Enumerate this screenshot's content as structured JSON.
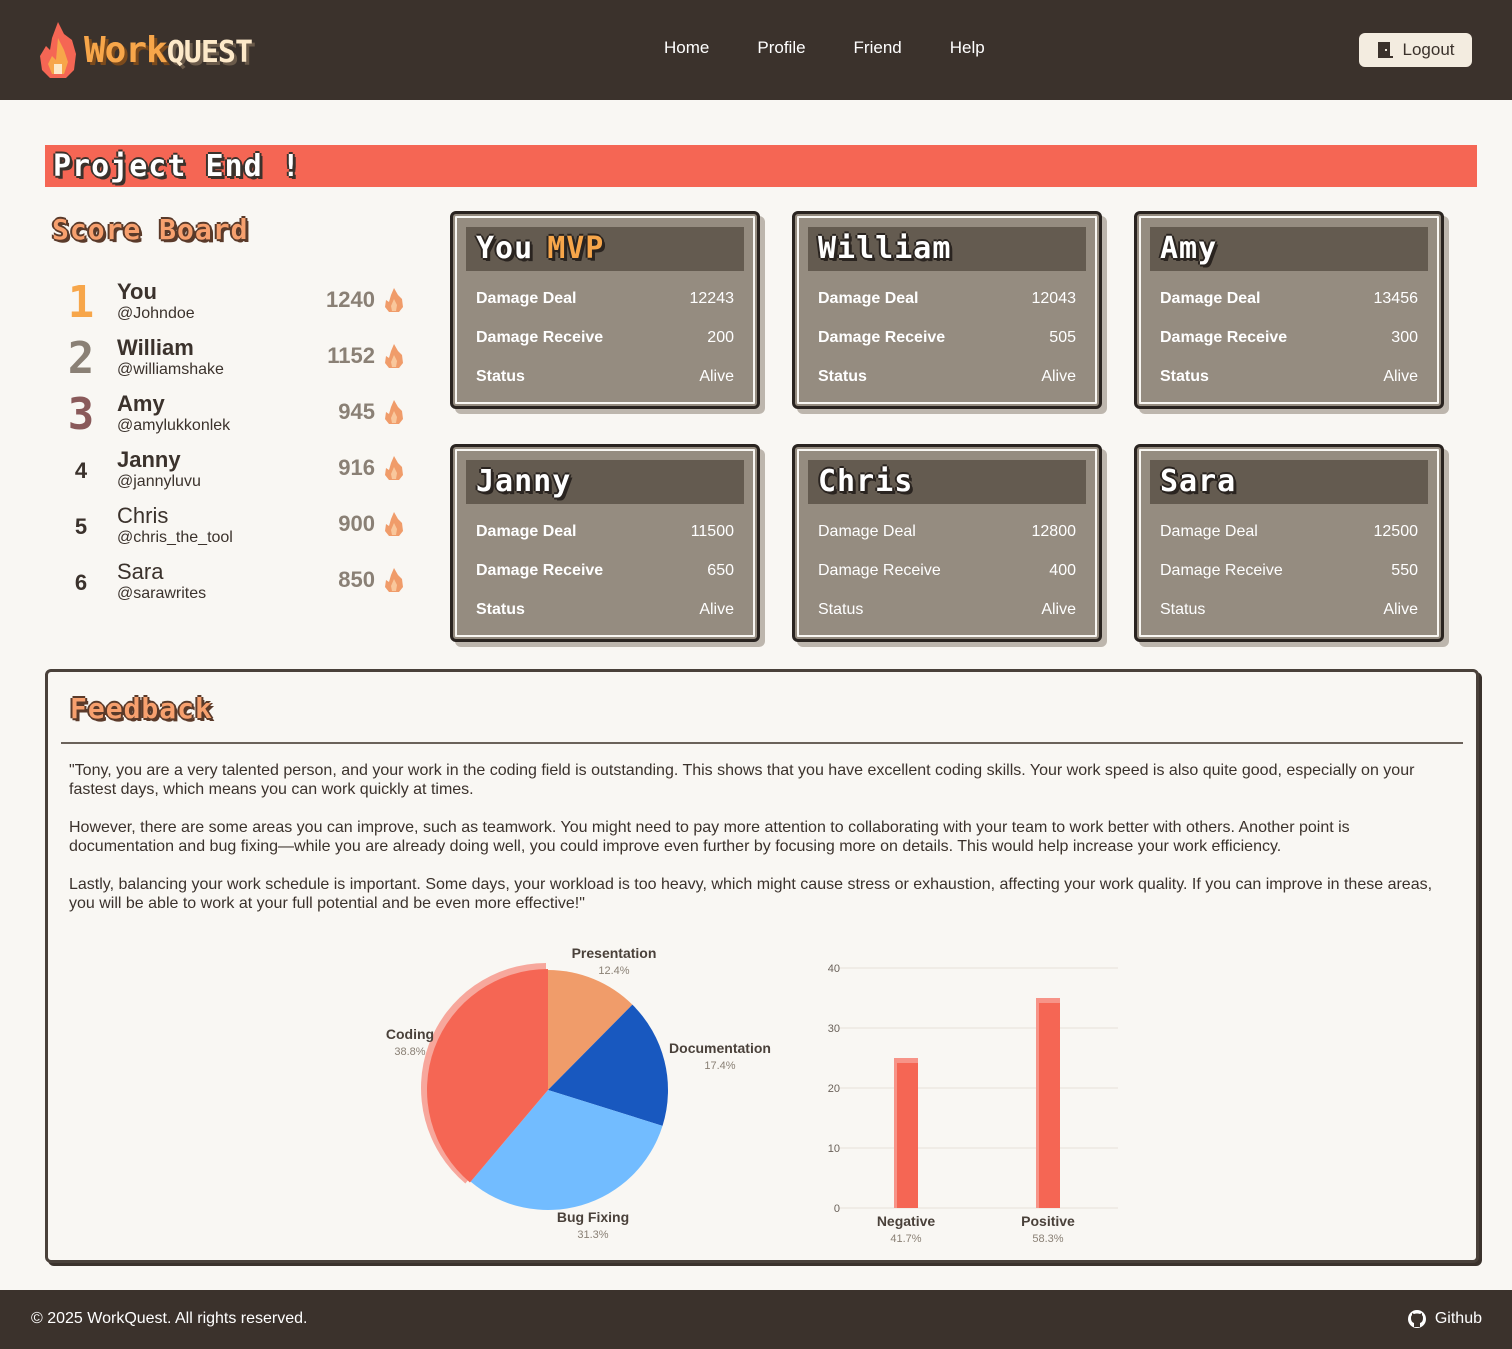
{
  "app": {
    "logo_work": "Work",
    "logo_quest": "QUEST"
  },
  "nav": {
    "items": [
      {
        "label": "Home"
      },
      {
        "label": "Profile"
      },
      {
        "label": "Friend"
      },
      {
        "label": "Help"
      }
    ],
    "logout_label": "Logout"
  },
  "banner": {
    "title": "Project End !"
  },
  "scoreboard": {
    "title": "Score Board",
    "rows": [
      {
        "rank": "1",
        "name": "You",
        "handle": "@Johndoe",
        "score": "1240",
        "rank_color": "#f7a64a"
      },
      {
        "rank": "2",
        "name": "William",
        "handle": "@williamshake",
        "score": "1152",
        "rank_color": "#8a8075"
      },
      {
        "rank": "3",
        "name": "Amy",
        "handle": "@amylukkonlek",
        "score": "945",
        "rank_color": "#8a5a5a"
      },
      {
        "rank": "4",
        "name": "Janny",
        "handle": "@jannyluvu",
        "score": "916",
        "rank_color": "#3b322c"
      },
      {
        "rank": "5",
        "name": "Chris",
        "handle": "@chris_the_tool",
        "score": "900",
        "rank_color": "#3b322c"
      },
      {
        "rank": "6",
        "name": "Sara",
        "handle": "@sarawrites",
        "score": "850",
        "rank_color": "#3b322c"
      }
    ]
  },
  "cards": [
    {
      "name": "You",
      "badge": "MVP",
      "deal_label": "Damage Deal",
      "deal": "12243",
      "recv_label": "Damage Receive",
      "recv": "200",
      "status_label": "Status",
      "status": "Alive"
    },
    {
      "name": "William",
      "badge": "",
      "deal_label": "Damage Deal",
      "deal": "12043",
      "recv_label": "Damage Receive",
      "recv": "505",
      "status_label": "Status",
      "status": "Alive"
    },
    {
      "name": "Amy",
      "badge": "",
      "deal_label": "Damage Deal",
      "deal": "13456",
      "recv_label": "Damage Receive",
      "recv": "300",
      "status_label": "Status",
      "status": "Alive"
    },
    {
      "name": "Janny",
      "badge": "",
      "deal_label": "Damage Deal",
      "deal": "11500",
      "recv_label": "Damage Receive",
      "recv": "650",
      "status_label": "Status",
      "status": "Alive"
    },
    {
      "name": "Chris",
      "badge": "",
      "deal_label": "Damage Deal",
      "deal": "12800",
      "recv_label": "Damage Receive",
      "recv": "400",
      "status_label": "Status",
      "status": "Alive"
    },
    {
      "name": "Sara",
      "badge": "",
      "deal_label": "Damage Deal",
      "deal": "12500",
      "recv_label": "Damage Receive",
      "recv": "550",
      "status_label": "Status",
      "status": "Alive"
    }
  ],
  "feedback": {
    "title": "Feedback",
    "paragraphs": [
      "\"Tony, you are a very talented person, and your work in the coding field is outstanding. This shows that you have excellent coding skills. Your work speed is also quite good, especially on your fastest days, which means you can work quickly at times.",
      "However, there are some areas you can improve, such as teamwork. You might need to pay more attention to collaborating with your team to work better with others. Another point is documentation and bug fixing—while you are already doing well, you could improve even further by focusing more on details. This would help increase your work efficiency.",
      "Lastly, balancing your work schedule is important. Some days, your workload is too heavy, which might cause stress or exhaustion, affecting your work quality. If you can improve in these areas, you will be able to work at your full potential and be even more effective!\""
    ]
  },
  "chart_data": [
    {
      "type": "pie",
      "slices": [
        {
          "label": "Presentation",
          "value": 12.4,
          "display": "12.4%",
          "color": "#f09c6a"
        },
        {
          "label": "Documentation",
          "value": 17.4,
          "display": "17.4%",
          "color": "#1858bf"
        },
        {
          "label": "Bug Fixing",
          "value": 31.3,
          "display": "31.3%",
          "color": "#72bcff"
        },
        {
          "label": "Coding",
          "value": 38.8,
          "display": "38.8%",
          "color": "#f56654",
          "highlighted": true
        }
      ]
    },
    {
      "type": "bar",
      "categories": [
        "Negative",
        "Positive"
      ],
      "values": [
        25,
        35
      ],
      "percent_labels": [
        "41.7%",
        "58.3%"
      ],
      "ylim": [
        0,
        40
      ],
      "yticks": [
        "0",
        "10",
        "20",
        "30",
        "40"
      ],
      "grid": true,
      "color": "#f56654"
    }
  ],
  "footer": {
    "copyright": "© 2025 WorkQuest. All rights reserved.",
    "github_label": "Github"
  },
  "colors": {
    "header_bg": "#3b322c",
    "accent": "#f56654",
    "card_bg": "#958c80",
    "card_head": "#645b50",
    "gold": "#f7a64a"
  }
}
